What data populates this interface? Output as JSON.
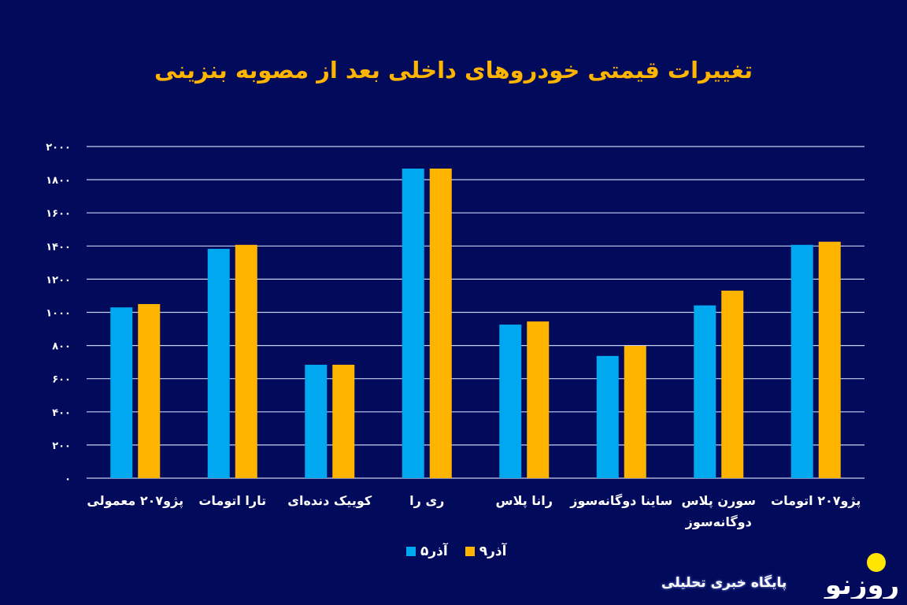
{
  "chart_data": {
    "type": "bar",
    "title": "تغییرات قیمتی خودروهای داخلی بعد از مصوبه بنزینی",
    "categories": [
      "پژو۲۰۷ معمولی",
      "تارا اتومات",
      "کوییک دنده‌ای",
      "ری را",
      "رانا پلاس",
      "ساینا دوگانه‌سوز",
      "سورن پلاس دوگانه‌سوز",
      "پژو۲۰۷ اتومات"
    ],
    "series": [
      {
        "name": "۵آذر",
        "color": "#00a8f0",
        "values": [
          1030,
          1383,
          684,
          1867,
          926,
          737,
          1042,
          1407
        ]
      },
      {
        "name": "۹آذر",
        "color": "#ffb400",
        "values": [
          1050,
          1407,
          684,
          1867,
          945,
          798,
          1131,
          1426
        ]
      }
    ],
    "ylim": [
      0,
      2000
    ],
    "yticks": [
      0,
      200,
      400,
      600,
      800,
      1000,
      1200,
      1400,
      1600,
      1800,
      2000
    ],
    "ytick_labels": [
      "۰",
      "۲۰۰",
      "۴۰۰",
      "۶۰۰",
      "۸۰۰",
      "۱۰۰۰",
      "۱۲۰۰",
      "۱۴۰۰",
      "۱۶۰۰",
      "۱۸۰۰",
      "۲۰۰۰"
    ],
    "grid": true,
    "legend_position": "bottom",
    "background_color": "#020a5c",
    "title_color": "#ffb400"
  },
  "branding": {
    "logo_text": "روزنو",
    "tagline": "پایگاه خبری تحلیلی",
    "logo_icon": "yellow-circle-logo"
  }
}
